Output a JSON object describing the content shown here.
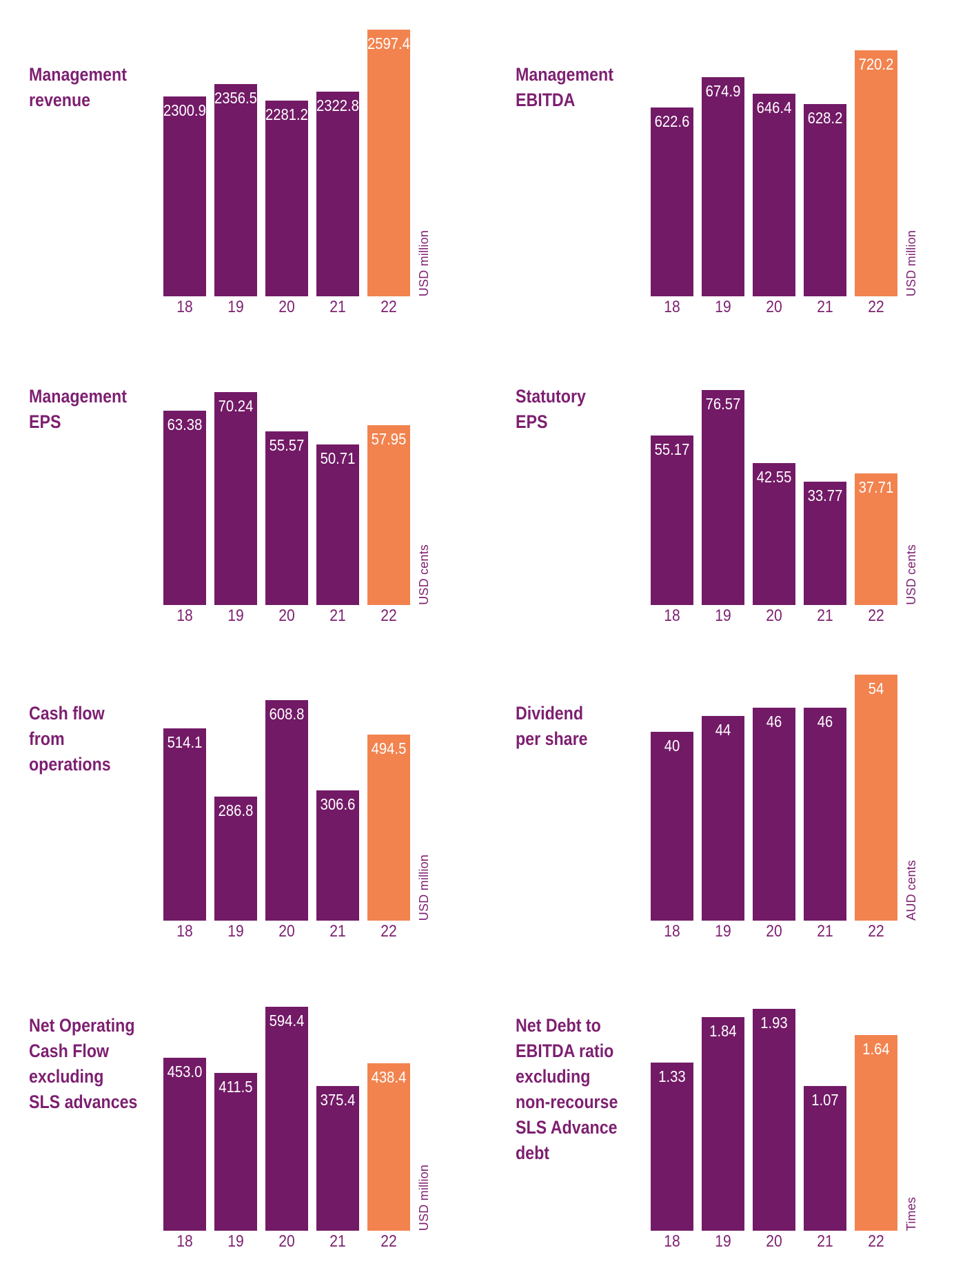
{
  "colors": {
    "bar": "#721A66",
    "highlight": "#F2834F",
    "text": "#7D1F70",
    "value_label": "#FFFFFF",
    "background": "#FFFFFF"
  },
  "chart_data": [
    {
      "type": "bar",
      "title": "Management\nrevenue",
      "ylabel": "USD million",
      "categories": [
        "18",
        "19",
        "20",
        "21",
        "22"
      ],
      "values": [
        2300.9,
        2356.5,
        2281.2,
        2322.8,
        2597.4
      ],
      "value_labels": [
        "2300.9",
        "2356.5",
        "2281.2",
        "2322.8",
        "2597.4"
      ],
      "highlight_index": 4,
      "ylim": [
        1410,
        2597.4
      ],
      "grid": false,
      "legend": false
    },
    {
      "type": "bar",
      "title": "Management\nEBITDA",
      "ylabel": "USD million",
      "categories": [
        "18",
        "19",
        "20",
        "21",
        "22"
      ],
      "values": [
        622.6,
        674.9,
        646.4,
        628.2,
        720.2
      ],
      "value_labels": [
        "622.6",
        "674.9",
        "646.4",
        "628.2",
        "720.2"
      ],
      "highlight_index": 4,
      "ylim": [
        300,
        720.2
      ],
      "grid": false,
      "legend": false
    },
    {
      "type": "bar",
      "title": "Management\nEPS",
      "ylabel": "USD cents",
      "categories": [
        "18",
        "19",
        "20",
        "21",
        "22"
      ],
      "values": [
        63.38,
        70.24,
        55.57,
        50.71,
        57.95
      ],
      "value_labels": [
        "63.38",
        "70.24",
        "55.57",
        "50.71",
        "57.95"
      ],
      "highlight_index": 4,
      "ylim": [
        -9,
        70.24
      ],
      "grid": false,
      "legend": false
    },
    {
      "type": "bar",
      "title": "Statutory\nEPS",
      "ylabel": "USD cents",
      "categories": [
        "18",
        "19",
        "20",
        "21",
        "22"
      ],
      "values": [
        55.17,
        76.57,
        42.55,
        33.77,
        37.71
      ],
      "value_labels": [
        "55.17",
        "76.57",
        "42.55",
        "33.77",
        "37.71"
      ],
      "highlight_index": 4,
      "ylim": [
        -24,
        76.57
      ],
      "grid": false,
      "legend": false
    },
    {
      "type": "bar",
      "title": "Cash flow\nfrom\noperations",
      "ylabel": "USD million",
      "categories": [
        "18",
        "19",
        "20",
        "21",
        "22"
      ],
      "values": [
        514.1,
        286.8,
        608.8,
        306.6,
        494.5
      ],
      "value_labels": [
        "514.1",
        "286.8",
        "608.8",
        "306.6",
        "494.5"
      ],
      "highlight_index": 4,
      "ylim": [
        -127,
        608.8
      ],
      "grid": false,
      "legend": false
    },
    {
      "type": "bar",
      "title": "Dividend\nper share",
      "ylabel": "AUD cents",
      "categories": [
        "18",
        "19",
        "20",
        "21",
        "22"
      ],
      "values": [
        40,
        44,
        46,
        46,
        54
      ],
      "value_labels": [
        "40",
        "44",
        "46",
        "46",
        "54"
      ],
      "highlight_index": 4,
      "ylim": [
        -6,
        54
      ],
      "grid": false,
      "legend": false
    },
    {
      "type": "bar",
      "title": "Net Operating\nCash Flow\nexcluding\nSLS advances",
      "ylabel": "USD million",
      "categories": [
        "18",
        "19",
        "20",
        "21",
        "22"
      ],
      "values": [
        453.0,
        411.5,
        594.4,
        375.4,
        438.4
      ],
      "value_labels": [
        "453.0",
        "411.5",
        "594.4",
        "375.4",
        "438.4"
      ],
      "highlight_index": 4,
      "ylim": [
        -26,
        594.4
      ],
      "grid": false,
      "legend": false
    },
    {
      "type": "bar",
      "title": "Net Debt to\nEBITDA ratio\nexcluding\nnon-recourse\nSLS Advance\ndebt",
      "ylabel": "Times",
      "categories": [
        "18",
        "19",
        "20",
        "21",
        "22"
      ],
      "values": [
        1.33,
        1.84,
        1.93,
        1.07,
        1.64
      ],
      "value_labels": [
        "1.33",
        "1.84",
        "1.93",
        "1.07",
        "1.64"
      ],
      "highlight_index": 4,
      "ylim": [
        -0.55,
        1.93
      ],
      "grid": false,
      "legend": false
    }
  ]
}
